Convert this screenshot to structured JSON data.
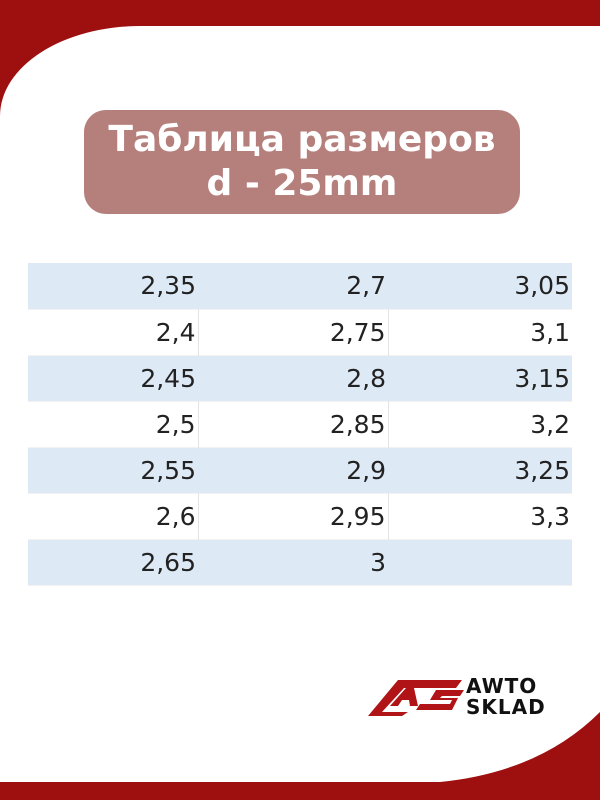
{
  "title": {
    "line1": "Таблица размеров",
    "line2": "d - 25mm"
  },
  "table": {
    "rows": [
      [
        "2,35",
        "2,7",
        "3,05"
      ],
      [
        "2,4",
        "2,75",
        "3,1"
      ],
      [
        "2,45",
        "2,8",
        "3,15"
      ],
      [
        "2,5",
        "2,85",
        "3,2"
      ],
      [
        "2,55",
        "2,9",
        "3,25"
      ],
      [
        "2,6",
        "2,95",
        "3,3"
      ],
      [
        "2,65",
        "3",
        ""
      ]
    ]
  },
  "logo": {
    "mark": "AS",
    "line1": "AWTO",
    "line2": "SKLAD"
  },
  "colors": {
    "brand_red": "#9e0f10",
    "title_bg": "#b57f7c",
    "row_stripe": "#dde9f5"
  }
}
